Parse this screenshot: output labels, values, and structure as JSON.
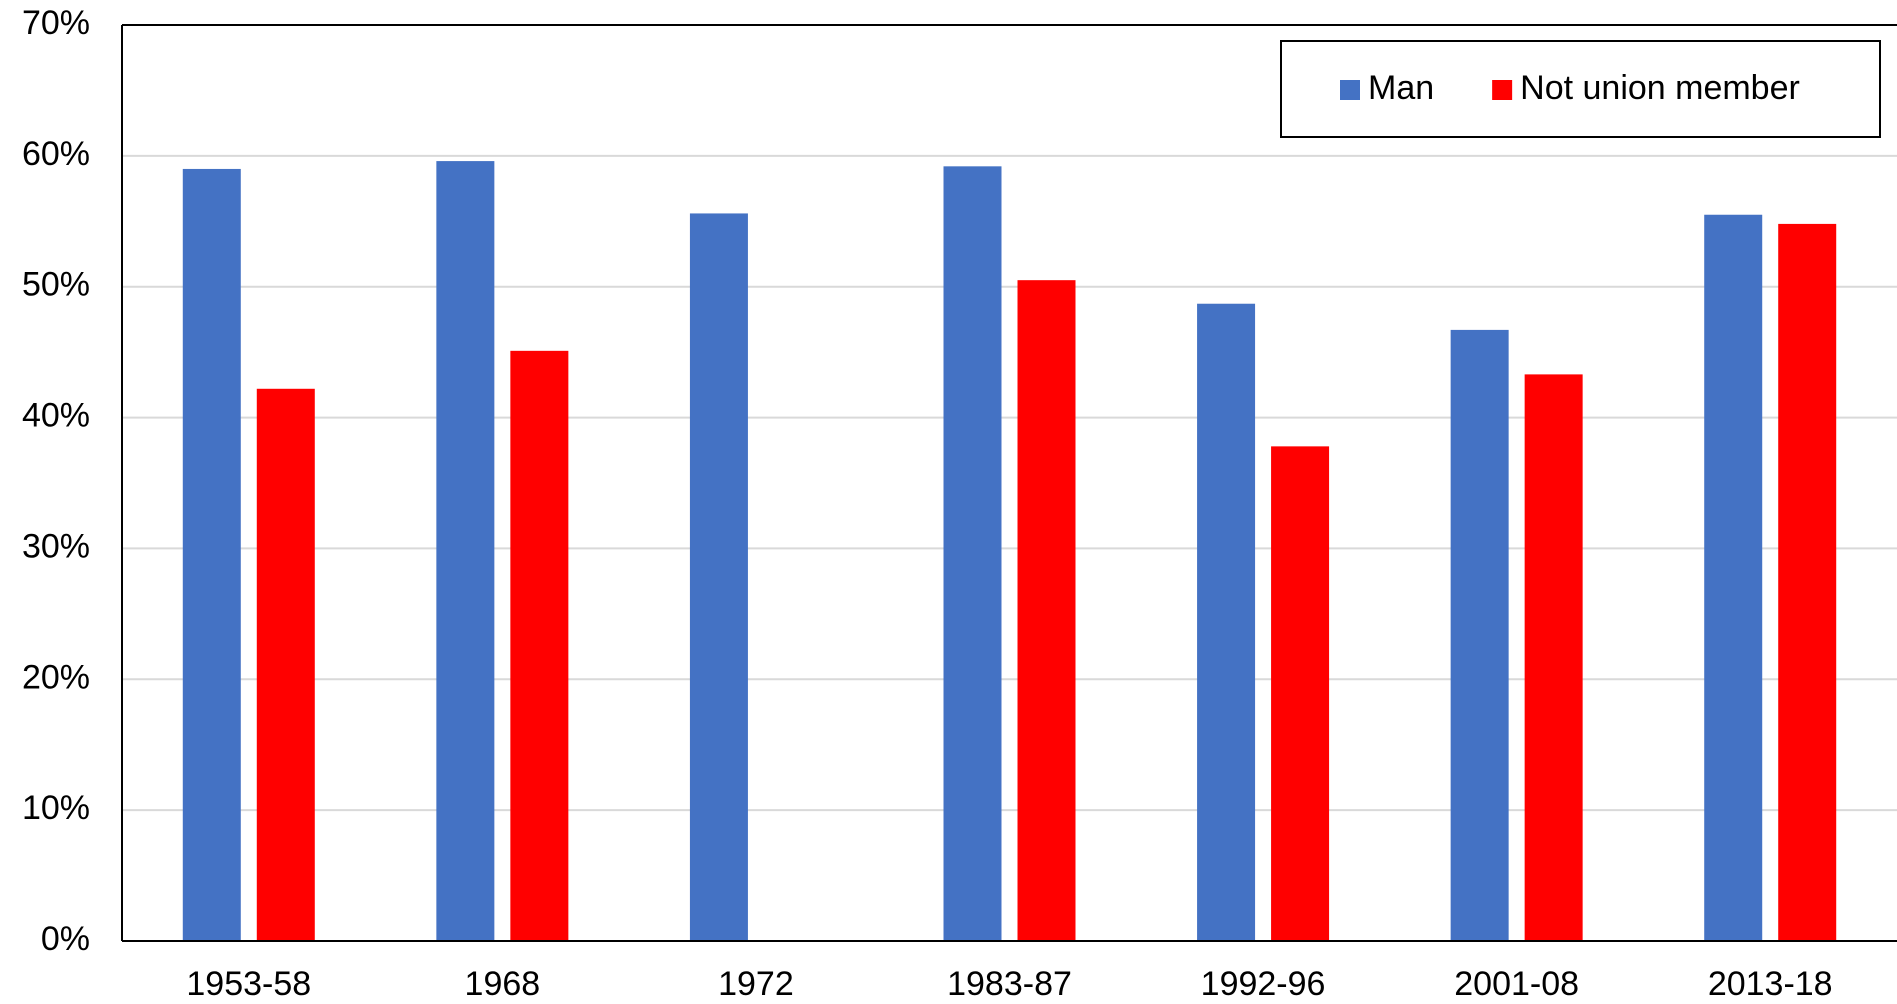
{
  "chart_data": {
    "type": "bar",
    "categories": [
      "1953-58",
      "1968",
      "1972",
      "1983-87",
      "1992-96",
      "2001-08",
      "2013-18"
    ],
    "series": [
      {
        "name": "Man",
        "color": "#4472c4",
        "values": [
          59,
          59.6,
          55.6,
          59.2,
          48.7,
          46.7,
          55.5
        ]
      },
      {
        "name": "Not union member",
        "color": "#ff0000",
        "values": [
          42.2,
          45.1,
          null,
          50.5,
          37.8,
          43.3,
          54.8
        ]
      }
    ],
    "ylim": [
      0,
      70
    ],
    "yticks": [
      {
        "value": 0,
        "label": "0%"
      },
      {
        "value": 10,
        "label": "10%"
      },
      {
        "value": 20,
        "label": "20%"
      },
      {
        "value": 30,
        "label": "30%"
      },
      {
        "value": 40,
        "label": "40%"
      },
      {
        "value": 50,
        "label": "50%"
      },
      {
        "value": 60,
        "label": "60%"
      },
      {
        "value": 70,
        "label": "70%"
      }
    ],
    "grid": true,
    "legend": "top-right"
  }
}
